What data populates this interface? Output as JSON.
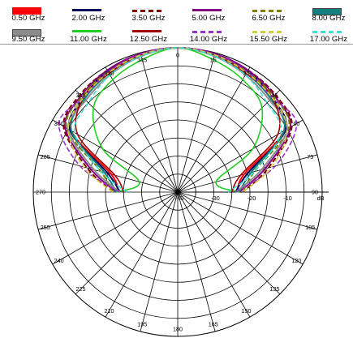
{
  "legend": [
    {
      "label": "0.50 GHz",
      "color": "#ff0000",
      "style": "solid",
      "width": 2.0
    },
    {
      "label": "2.00 GHz",
      "color": "#00005c",
      "style": "solid",
      "width": 2.0
    },
    {
      "label": "3.50 GHz",
      "color": "#800000",
      "style": "dashed",
      "width": 2.0
    },
    {
      "label": "5.00 GHz",
      "color": "#800080",
      "style": "solid",
      "width": 2.0
    },
    {
      "label": "6.50 GHz",
      "color": "#808000",
      "style": "dashed",
      "width": 2.0
    },
    {
      "label": "8.00 GHz",
      "color": "#148080",
      "style": "block",
      "width": 2.0
    },
    {
      "label": "9.50 GHz",
      "color": "#8c8c8c",
      "style": "block",
      "width": 2.0
    },
    {
      "label": "11.00 GHz",
      "color": "#22cc22",
      "style": "solid",
      "width": 1.6
    },
    {
      "label": "12.50 GHz",
      "color": "#a00000",
      "style": "solid",
      "width": 1.6
    },
    {
      "label": "14.00 GHz",
      "color": "#9932cc",
      "style": "dashed",
      "width": 1.6
    },
    {
      "label": "15.50 GHz",
      "color": "#cfcf40",
      "style": "dashed",
      "width": 1.6
    },
    {
      "label": "17.00 GHz",
      "color": "#40e0d0",
      "style": "dashed",
      "width": 1.6
    }
  ],
  "chart_data": {
    "type": "polar-line",
    "angle_unit": "deg",
    "angle_zero": "top",
    "angle_direction": "clockwise",
    "radial_unit": "dB",
    "radial_range": [
      -40,
      0
    ],
    "radial_ticks": [
      -40,
      -30,
      -20,
      -10
    ],
    "radial_tick_labels": [
      "-40",
      "-30",
      "-20",
      "-10"
    ],
    "radial_unit_label": "dB",
    "angle_ticks": [
      0,
      15,
      30,
      45,
      60,
      75,
      90,
      105,
      120,
      135,
      150,
      165,
      180,
      195,
      210,
      225,
      240,
      255,
      270,
      285,
      300,
      315,
      330,
      345
    ],
    "angle_tick_labels": [
      "0",
      "15",
      "30",
      "45",
      "60",
      "75",
      "90",
      "105",
      "120",
      "135",
      "150",
      "165",
      "180",
      "195",
      "210",
      "225",
      "240",
      "255",
      "270",
      "285",
      "300",
      "315",
      "330",
      "345"
    ],
    "series": [
      {
        "name": "0.50 GHz",
        "angles": [
          -90,
          -75,
          -60,
          -45,
          -30,
          -15,
          0,
          15,
          30,
          45,
          60,
          75,
          90
        ],
        "values": [
          -23.5,
          -21,
          -6,
          -3,
          -1.5,
          -0.5,
          0,
          -0.5,
          -1.5,
          -3,
          -6,
          -21,
          -23.5
        ]
      },
      {
        "name": "2.00 GHz",
        "angles": [
          -90,
          -75,
          -60,
          -45,
          -30,
          -15,
          0,
          15,
          30,
          45,
          60,
          75,
          90
        ],
        "values": [
          -24,
          -20,
          -5.5,
          -3,
          -1.2,
          -0.4,
          0,
          -0.4,
          -1.2,
          -3,
          -5.5,
          -20,
          -24
        ]
      },
      {
        "name": "3.50 GHz",
        "angles": [
          -90,
          -75,
          -60,
          -45,
          -30,
          -15,
          0,
          15,
          30,
          45,
          60,
          75,
          90
        ],
        "values": [
          -22,
          -14,
          -3.5,
          -1.8,
          -1,
          -0.3,
          0,
          -0.3,
          -1,
          -1.8,
          -3.5,
          -14,
          -22
        ]
      },
      {
        "name": "5.00 GHz",
        "angles": [
          -90,
          -75,
          -60,
          -45,
          -30,
          -15,
          0,
          15,
          30,
          45,
          60,
          75,
          90
        ],
        "values": [
          -23,
          -15,
          -4,
          -2.2,
          -1,
          -0.3,
          0,
          -0.3,
          -1,
          -2.2,
          -4,
          -15,
          -23
        ]
      },
      {
        "name": "6.50 GHz",
        "angles": [
          -90,
          -75,
          -60,
          -45,
          -30,
          -15,
          0,
          15,
          30,
          45,
          60,
          75,
          90
        ],
        "values": [
          -22,
          -18,
          -4.5,
          -2.5,
          -1.5,
          -0.6,
          0,
          -0.6,
          -1.5,
          -2.5,
          -4.5,
          -18,
          -22
        ]
      },
      {
        "name": "8.00 GHz",
        "angles": [
          -90,
          -75,
          -60,
          -45,
          -30,
          -15,
          0,
          15,
          30,
          45,
          60,
          75,
          90
        ],
        "values": [
          -23,
          -19,
          -6,
          -3.5,
          -2,
          -0.8,
          0,
          -0.8,
          -2,
          -3.5,
          -6,
          -19,
          -23
        ]
      },
      {
        "name": "9.50 GHz",
        "angles": [
          -90,
          -75,
          -60,
          -45,
          -30,
          -15,
          0,
          15,
          30,
          45,
          60,
          75,
          90
        ],
        "values": [
          -24,
          -16,
          -5,
          -4,
          -2.5,
          -1,
          0,
          -1,
          -2.5,
          -4,
          -5,
          -16,
          -24
        ]
      },
      {
        "name": "11.00 GHz",
        "angles": [
          -90,
          -75,
          -60,
          -45,
          -30,
          -15,
          0,
          15,
          30,
          45,
          60,
          75,
          90
        ],
        "values": [
          -23,
          -29,
          -16,
          -7,
          -4,
          -2,
          0,
          -2,
          -4,
          -7,
          -16,
          -29,
          -23
        ]
      },
      {
        "name": "12.50 GHz",
        "angles": [
          -90,
          -75,
          -60,
          -45,
          -30,
          -15,
          0,
          15,
          30,
          45,
          60,
          75,
          90
        ],
        "values": [
          -25,
          -22,
          -8,
          -3,
          -2,
          -0.6,
          0,
          -0.6,
          -2,
          -3,
          -8,
          -22,
          -25
        ]
      },
      {
        "name": "14.00 GHz",
        "angles": [
          -90,
          -75,
          -60,
          -45,
          -30,
          -15,
          0,
          15,
          30,
          45,
          60,
          75,
          90
        ],
        "values": [
          -24,
          -12,
          -2,
          -3,
          -1.5,
          -0.4,
          0,
          -0.4,
          -1.5,
          -3,
          -2,
          -12,
          -24
        ]
      },
      {
        "name": "15.50 GHz",
        "angles": [
          -90,
          -75,
          -60,
          -45,
          -30,
          -15,
          0,
          15,
          30,
          45,
          60,
          75,
          90
        ],
        "values": [
          -22,
          -13,
          -5,
          -3,
          -1.8,
          -0.6,
          0,
          -0.6,
          -1.8,
          -3,
          -5,
          -13,
          -22
        ]
      },
      {
        "name": "17.00 GHz",
        "angles": [
          -90,
          -75,
          -60,
          -45,
          -30,
          -15,
          0,
          15,
          30,
          45,
          60,
          75,
          90
        ],
        "values": [
          -26,
          -18,
          -7,
          -5,
          -2.5,
          -1,
          0,
          -1,
          -2.5,
          -5,
          -7,
          -18,
          -26
        ]
      }
    ]
  }
}
